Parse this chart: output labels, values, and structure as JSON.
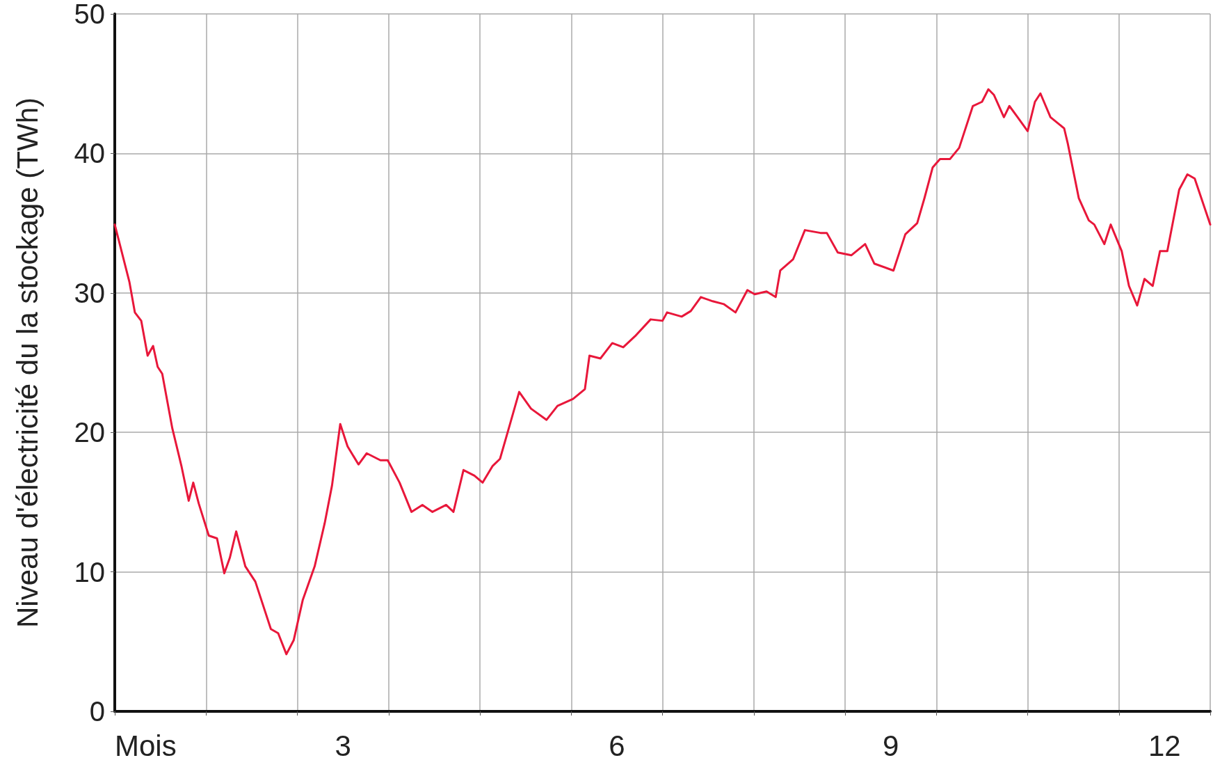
{
  "chart_data": {
    "type": "line",
    "xlabel": "Mois",
    "ylabel": "Niveau d'électricité du la stockage (TWh)",
    "xlim": [
      0,
      12
    ],
    "xticks": [
      {
        "value": 0,
        "label": null
      },
      {
        "value": 1,
        "label": null
      },
      {
        "value": 2,
        "label": null
      },
      {
        "value": 2.5,
        "label": "3"
      },
      {
        "value": 3,
        "label": null
      },
      {
        "value": 4,
        "label": null
      },
      {
        "value": 5,
        "label": null
      },
      {
        "value": 5.5,
        "label": "6"
      },
      {
        "value": 6,
        "label": null
      },
      {
        "value": 7,
        "label": null
      },
      {
        "value": 8,
        "label": null
      },
      {
        "value": 8.5,
        "label": "9"
      },
      {
        "value": 9,
        "label": null
      },
      {
        "value": 10,
        "label": null
      },
      {
        "value": 11,
        "label": null
      },
      {
        "value": 11.5,
        "label": "12"
      },
      {
        "value": 12,
        "label": null
      }
    ],
    "ylim": [
      0,
      50
    ],
    "yticks": [
      0,
      10,
      20,
      30,
      40,
      50
    ],
    "grid": true,
    "marker": "none",
    "line_style": "solid",
    "series": [
      {
        "color": "#e8173a",
        "x": [
          0,
          0.16,
          0.22,
          0.29,
          0.36,
          0.42,
          0.47,
          0.52,
          0.63,
          0.73,
          0.81,
          0.86,
          0.92,
          1.03,
          1.12,
          1.2,
          1.26,
          1.33,
          1.43,
          1.54,
          1.71,
          1.79,
          1.88,
          1.96,
          2.06,
          2.19,
          2.3,
          2.38,
          2.47,
          2.55,
          2.67,
          2.76,
          2.91,
          2.99,
          3.12,
          3.25,
          3.37,
          3.48,
          3.63,
          3.71,
          3.82,
          3.94,
          4.03,
          4.14,
          4.22,
          4.33,
          4.43,
          4.56,
          4.73,
          4.85,
          5.02,
          5.15,
          5.2,
          5.32,
          5.45,
          5.57,
          5.7,
          5.87,
          6,
          6.05,
          6.21,
          6.31,
          6.42,
          6.55,
          6.67,
          6.8,
          6.93,
          7.01,
          7.14,
          7.24,
          7.29,
          7.43,
          7.56,
          7.73,
          7.8,
          7.92,
          8.07,
          8.22,
          8.32,
          8.53,
          8.66,
          8.79,
          8.87,
          8.96,
          9.04,
          9.15,
          9.25,
          9.4,
          9.5,
          9.57,
          9.63,
          9.74,
          9.8,
          9.89,
          10,
          10.08,
          10.14,
          10.25,
          10.4,
          10.44,
          10.56,
          10.67,
          10.73,
          10.84,
          10.91,
          11.03,
          11.11,
          11.2,
          11.28,
          11.37,
          11.45,
          11.53,
          11.66,
          11.75,
          11.83,
          12
        ],
        "values": [
          34.9,
          30.8,
          28.6,
          28,
          25.5,
          26.2,
          24.7,
          24.2,
          20.3,
          17.6,
          15.1,
          16.4,
          14.9,
          12.6,
          12.4,
          9.9,
          11,
          12.9,
          10.4,
          9.3,
          5.9,
          5.6,
          4.1,
          5.1,
          8,
          10.4,
          13.5,
          16.2,
          20.6,
          19,
          17.7,
          18.5,
          18,
          18,
          16.4,
          14.3,
          14.8,
          14.3,
          14.8,
          14.3,
          17.3,
          16.9,
          16.4,
          17.6,
          18.1,
          20.6,
          22.9,
          21.7,
          20.9,
          21.9,
          22.4,
          23.1,
          25.5,
          25.3,
          26.4,
          26.1,
          26.9,
          28.1,
          28,
          28.6,
          28.3,
          28.7,
          29.7,
          29.4,
          29.2,
          28.6,
          30.2,
          29.9,
          30.1,
          29.7,
          31.6,
          32.4,
          34.5,
          34.3,
          34.3,
          32.9,
          32.7,
          33.5,
          32.1,
          31.6,
          34.2,
          35,
          36.8,
          39,
          39.6,
          39.6,
          40.4,
          43.4,
          43.7,
          44.6,
          44.2,
          42.6,
          43.4,
          42.6,
          41.6,
          43.7,
          44.3,
          42.6,
          41.8,
          40.7,
          36.8,
          35.2,
          34.9,
          33.5,
          34.9,
          33,
          30.5,
          29.1,
          31,
          30.5,
          33,
          33,
          37.4,
          38.5,
          38.2,
          34.9
        ]
      }
    ]
  }
}
